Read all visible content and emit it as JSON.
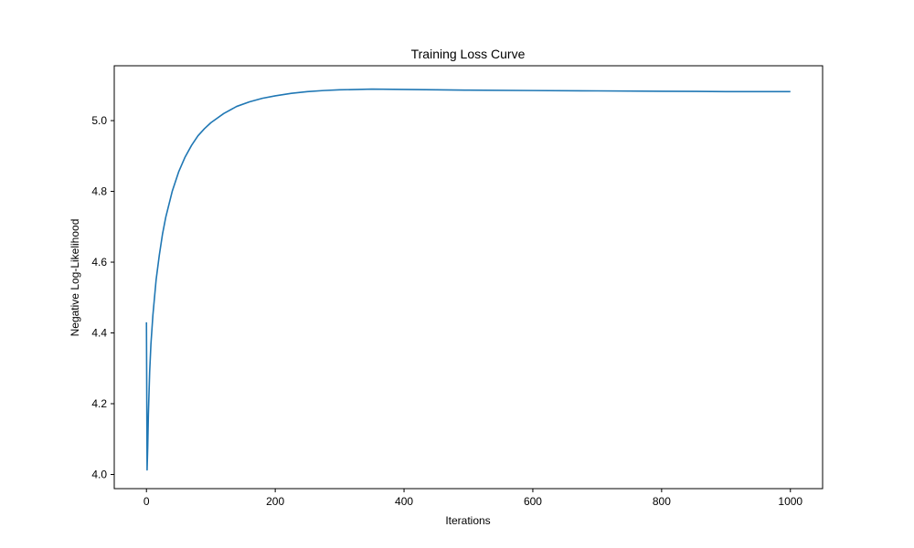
{
  "chart_data": {
    "type": "line",
    "title": "Training Loss Curve",
    "xlabel": "Iterations",
    "ylabel": "Negative Log-Likelihood",
    "xlim": [
      -50,
      1050
    ],
    "ylim": [
      3.96,
      5.155
    ],
    "xticks": [
      0,
      200,
      400,
      600,
      800,
      1000
    ],
    "xtick_labels": [
      "0",
      "200",
      "400",
      "600",
      "800",
      "1000"
    ],
    "yticks": [
      4.0,
      4.2,
      4.4,
      4.6,
      4.8,
      5.0
    ],
    "ytick_labels": [
      "4.0",
      "4.2",
      "4.4",
      "4.6",
      "4.8",
      "5.0"
    ],
    "grid": false,
    "series": [
      {
        "color": "#1f77b4",
        "x": [
          0,
          1,
          2,
          3,
          5,
          7,
          10,
          15,
          20,
          25,
          30,
          40,
          50,
          60,
          70,
          80,
          90,
          100,
          120,
          140,
          160,
          180,
          200,
          225,
          250,
          275,
          300,
          350,
          400,
          450,
          500,
          600,
          700,
          800,
          900,
          1000
        ],
        "y": [
          4.43,
          4.013,
          4.08,
          4.17,
          4.29,
          4.37,
          4.45,
          4.55,
          4.62,
          4.68,
          4.727,
          4.8,
          4.855,
          4.897,
          4.93,
          4.957,
          4.977,
          4.994,
          5.02,
          5.04,
          5.053,
          5.063,
          5.07,
          5.077,
          5.082,
          5.085,
          5.087,
          5.089,
          5.088,
          5.087,
          5.086,
          5.085,
          5.084,
          5.083,
          5.082,
          5.082
        ]
      }
    ]
  }
}
